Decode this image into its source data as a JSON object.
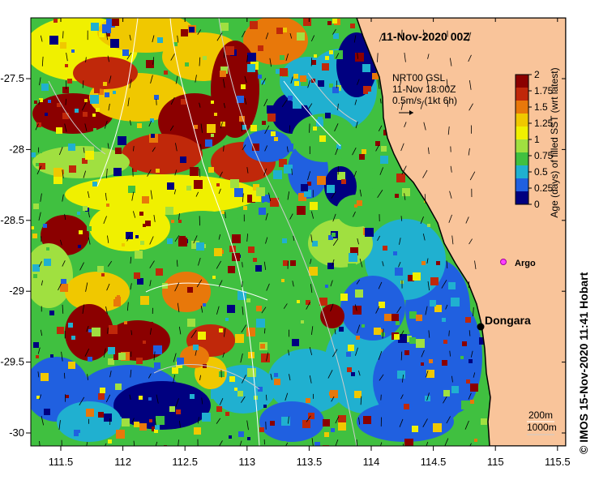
{
  "map": {
    "title": "11-Nov-2020 00Z",
    "x_ticks": [
      "111.5",
      "112",
      "112.5",
      "113",
      "113.5",
      "114",
      "114.5",
      "115",
      "115.5"
    ],
    "y_ticks": [
      "-27.5",
      "-28",
      "-28.5",
      "-29",
      "-29.5",
      "-30"
    ],
    "current_info": {
      "line1": "NRT00 GSL",
      "line2": "11-Nov 18:00Z",
      "line3": "0.5m/s (1kt 6h)"
    },
    "colorbar": {
      "label": "Age (days) of filled SST (wrt latest)",
      "ticks": [
        "2",
        "1.75",
        "1.5",
        "1.25",
        "1",
        "0.75",
        "0.5",
        "0.25",
        "0"
      ],
      "colors": [
        "#8b0000",
        "#c0280a",
        "#e8780a",
        "#f0c800",
        "#f0f000",
        "#a0e040",
        "#40c040",
        "#20b0d0",
        "#2060e0",
        "#000080"
      ]
    },
    "annotations": {
      "argo": "Argo",
      "town": "Dongara",
      "depth_contours": [
        "200m",
        "1000m"
      ]
    },
    "credit": "© IMOS 15-Nov-2020 11:41 Hobart",
    "land_color": "#f9c49a"
  }
}
